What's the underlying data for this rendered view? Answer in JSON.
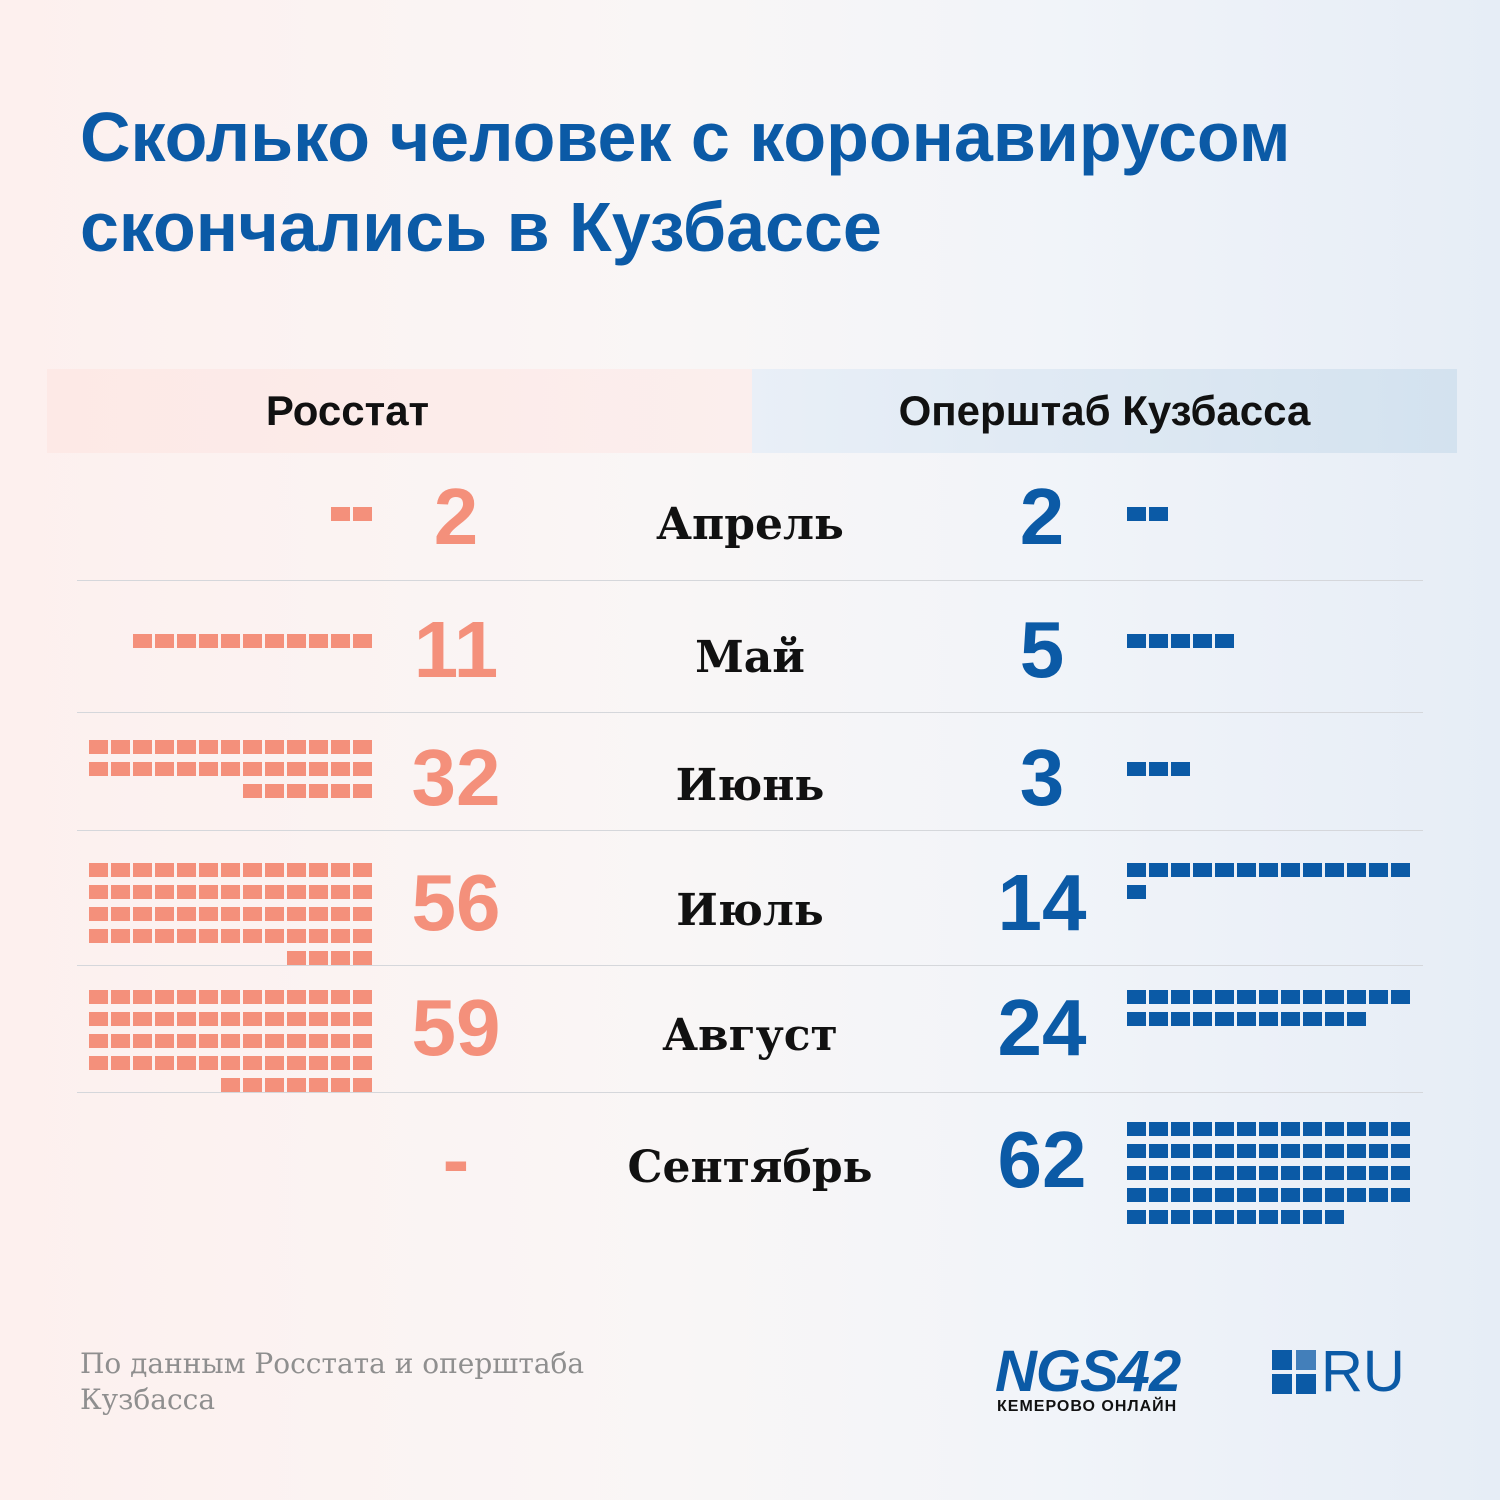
{
  "title": {
    "line1": "Сколько человек с коронавирусом",
    "line2": "скончались в Кузбассе"
  },
  "headers": {
    "left": "Росстат",
    "right": "Оперштаб Кузбасса"
  },
  "colors": {
    "left": "#f4907b",
    "right": "#0b5aa6"
  },
  "chart_data": {
    "type": "table",
    "title": "Сколько человек с коронавирусом скончались в Кузбассе",
    "categories": [
      "Апрель",
      "Май",
      "Июнь",
      "Июль",
      "Август",
      "Сентябрь"
    ],
    "series": [
      {
        "name": "Росстат",
        "values": [
          2,
          11,
          32,
          56,
          59,
          null
        ],
        "labels": [
          "2",
          "11",
          "32",
          "56",
          "59",
          "-"
        ]
      },
      {
        "name": "Оперштаб Кузбасса",
        "values": [
          2,
          5,
          3,
          14,
          24,
          62
        ],
        "labels": [
          "2",
          "5",
          "3",
          "14",
          "24",
          "62"
        ]
      }
    ],
    "unit_per_square": 1
  },
  "footer": {
    "source": "По данным Росстата и оперштаба Кузбасса"
  },
  "logo": {
    "main": "NGS42",
    "suffix": "RU",
    "tagline": "КЕМЕРОВО ОНЛАЙН"
  }
}
